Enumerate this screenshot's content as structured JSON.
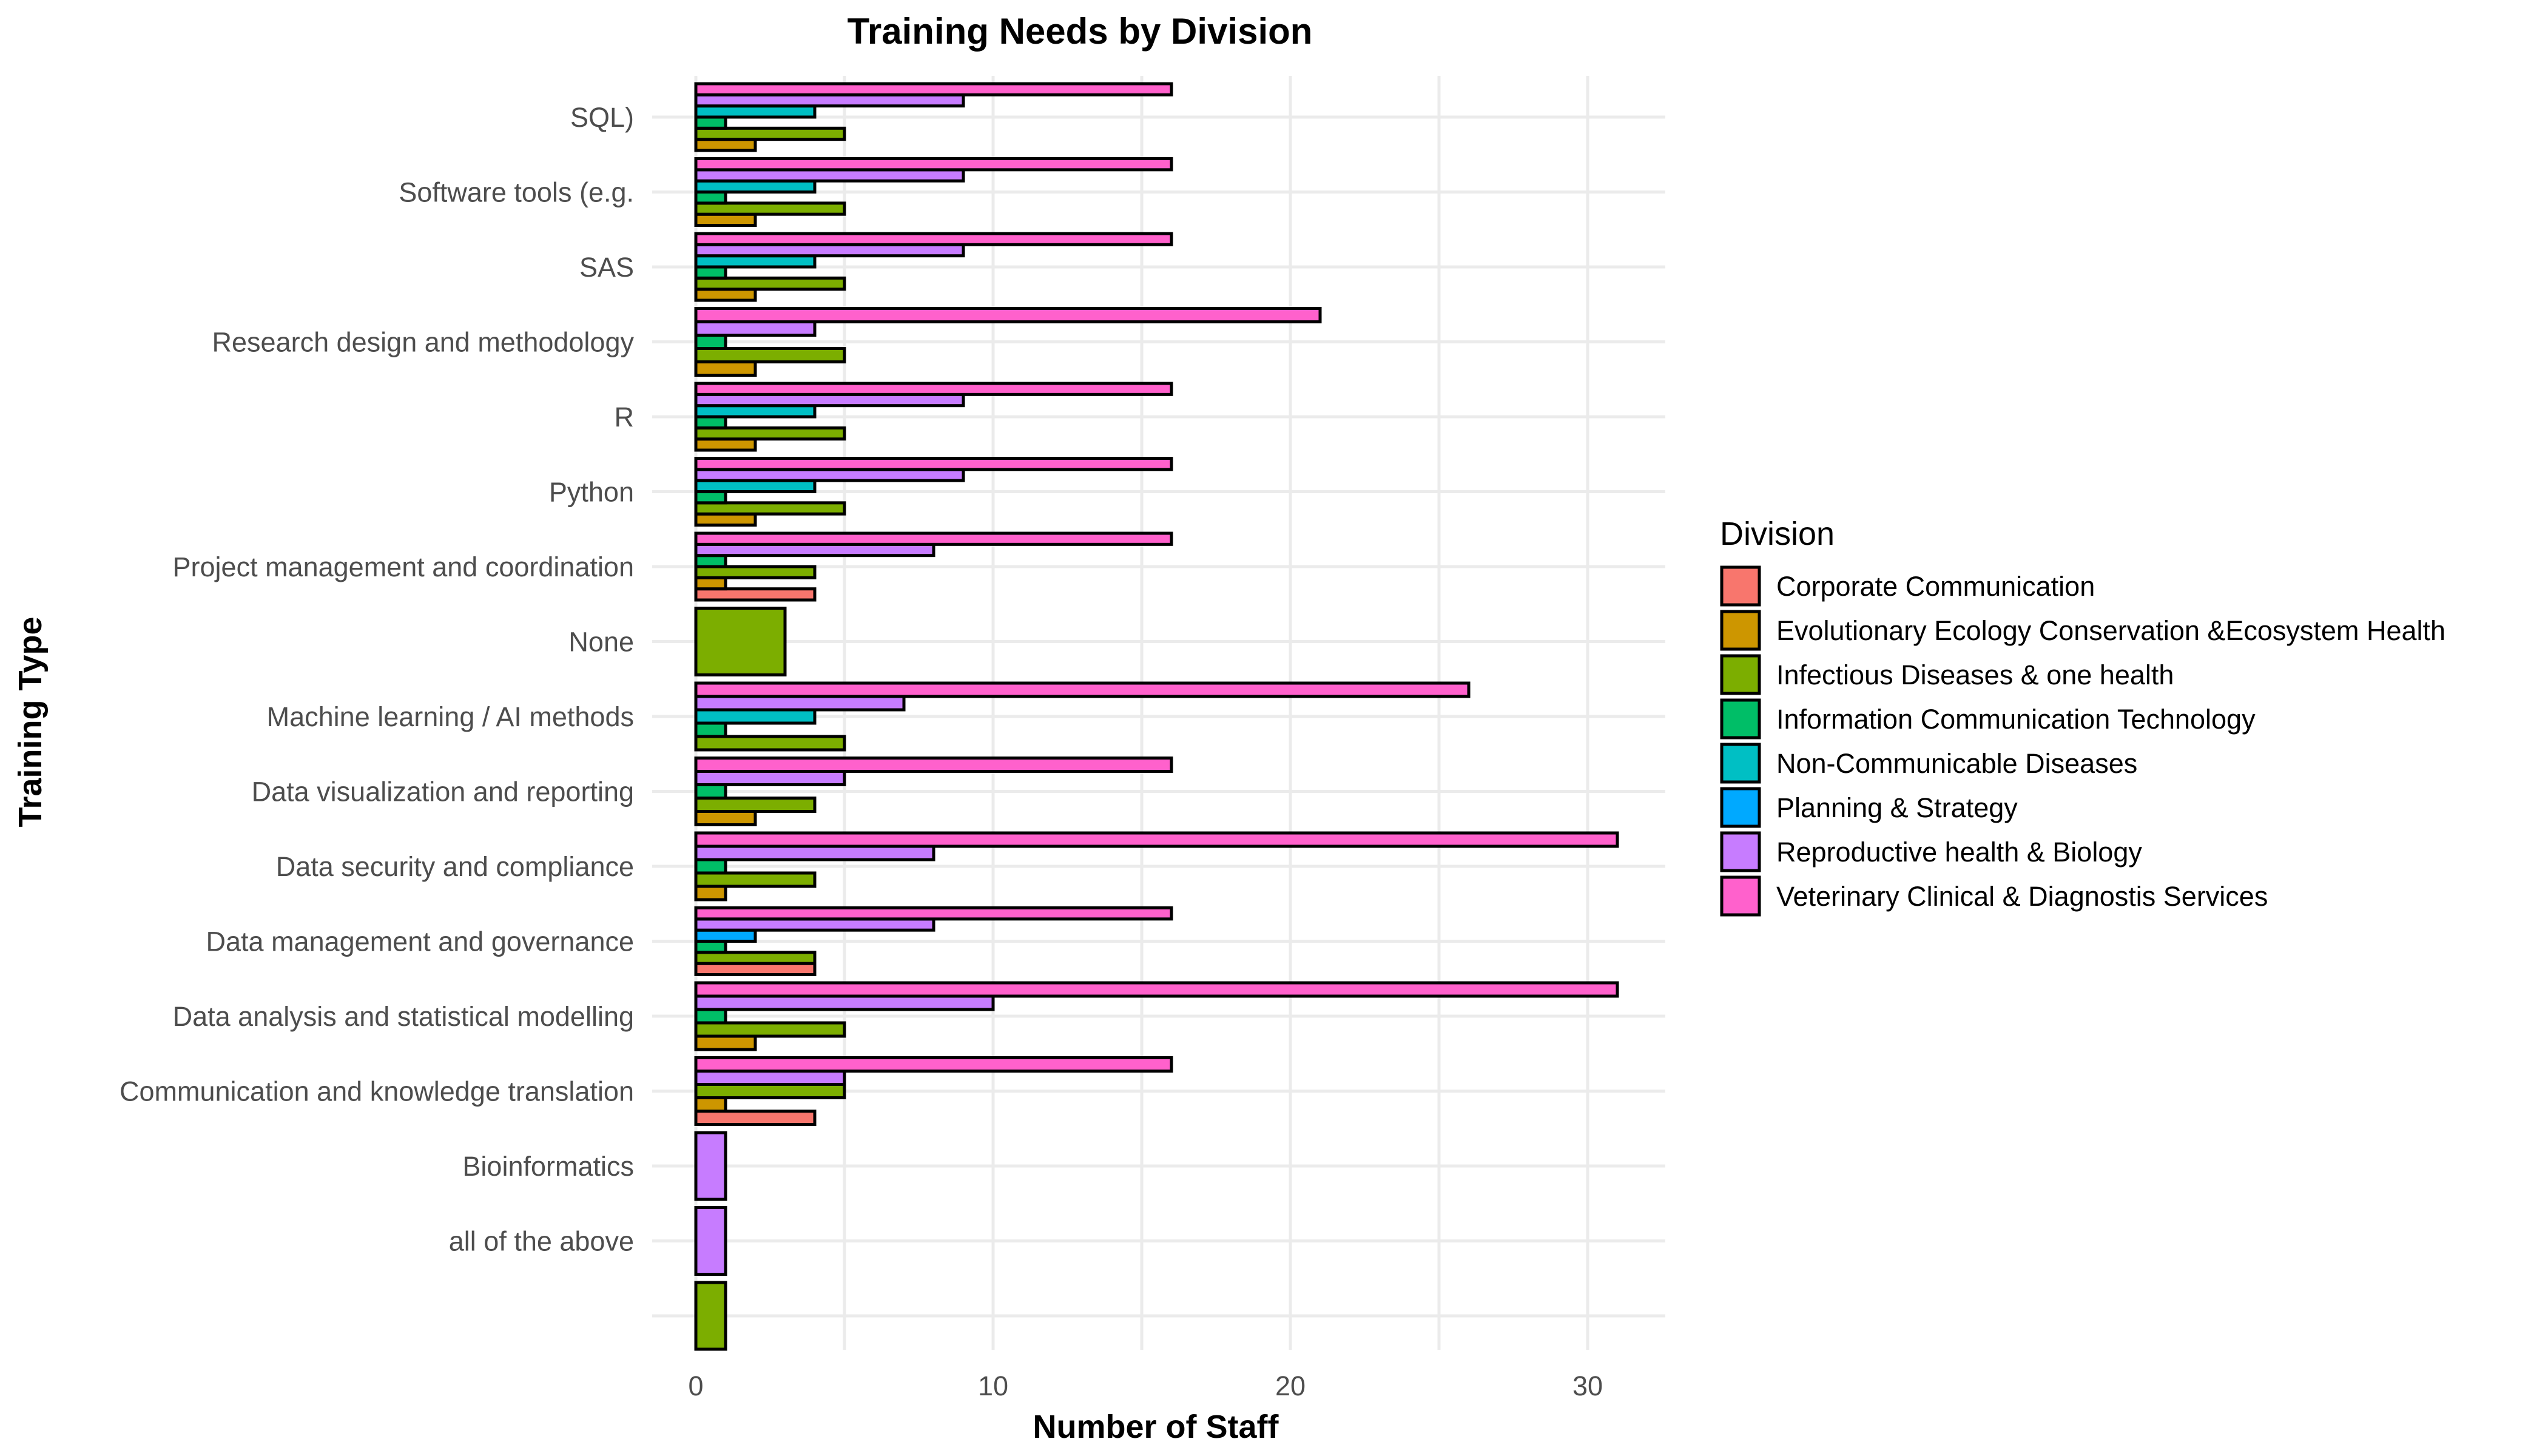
{
  "chart_data": {
    "type": "bar",
    "orientation": "horizontal",
    "title": "Training Needs by Division",
    "xlabel": "Number of Staff",
    "ylabel": "Training Type",
    "xlim": [
      0,
      32
    ],
    "x_ticks": [
      0,
      10,
      20,
      30
    ],
    "grid": true,
    "legend_title": "Division",
    "legend_position": "right",
    "categories": [
      "SQL)",
      "Software tools (e.g.",
      "SAS",
      "Research design and methodology",
      "R",
      "Python",
      "Project management and coordination",
      "None",
      "Machine learning / AI methods",
      "Data visualization and reporting",
      "Data security and compliance",
      "Data management and governance",
      "Data analysis and statistical modelling",
      "Communication and knowledge translation",
      "Bioinformatics",
      "all of the above",
      ""
    ],
    "series": [
      {
        "name": "Corporate Communication",
        "color": "#F8766D",
        "values": [
          0,
          0,
          0,
          0,
          0,
          0,
          4,
          0,
          0,
          0,
          0,
          4,
          0,
          4,
          0,
          0,
          0
        ]
      },
      {
        "name": "Evolutionary Ecology Conservation &Ecosystem Health",
        "color": "#CD9600",
        "values": [
          2,
          2,
          2,
          2,
          2,
          2,
          1,
          0,
          0,
          2,
          1,
          0,
          2,
          1,
          0,
          0,
          0
        ]
      },
      {
        "name": "Infectious Diseases & one health",
        "color": "#7CAE00",
        "values": [
          5,
          5,
          5,
          5,
          5,
          5,
          4,
          3,
          5,
          4,
          4,
          4,
          5,
          5,
          0,
          0,
          1
        ]
      },
      {
        "name": "Information Communication Technology",
        "color": "#00BE67",
        "values": [
          1,
          1,
          1,
          1,
          1,
          1,
          1,
          0,
          1,
          1,
          1,
          1,
          1,
          0,
          0,
          0,
          0
        ]
      },
      {
        "name": "Non-Communicable Diseases",
        "color": "#00BFC4",
        "values": [
          4,
          4,
          4,
          0,
          4,
          4,
          0,
          0,
          4,
          0,
          0,
          0,
          0,
          0,
          0,
          0,
          0
        ]
      },
      {
        "name": "Planning & Strategy",
        "color": "#00A9FF",
        "values": [
          0,
          0,
          0,
          0,
          0,
          0,
          0,
          0,
          0,
          0,
          0,
          2,
          0,
          0,
          0,
          0,
          0
        ]
      },
      {
        "name": "Reproductive health & Biology",
        "color": "#C77CFF",
        "values": [
          9,
          9,
          9,
          4,
          9,
          9,
          8,
          0,
          7,
          5,
          8,
          8,
          10,
          5,
          1,
          1,
          0
        ]
      },
      {
        "name": "Veterinary Clinical & Diagnostis Services",
        "color": "#FF61CC",
        "values": [
          16,
          16,
          16,
          21,
          16,
          16,
          16,
          0,
          26,
          16,
          31,
          16,
          31,
          16,
          0,
          0,
          0
        ]
      }
    ]
  }
}
